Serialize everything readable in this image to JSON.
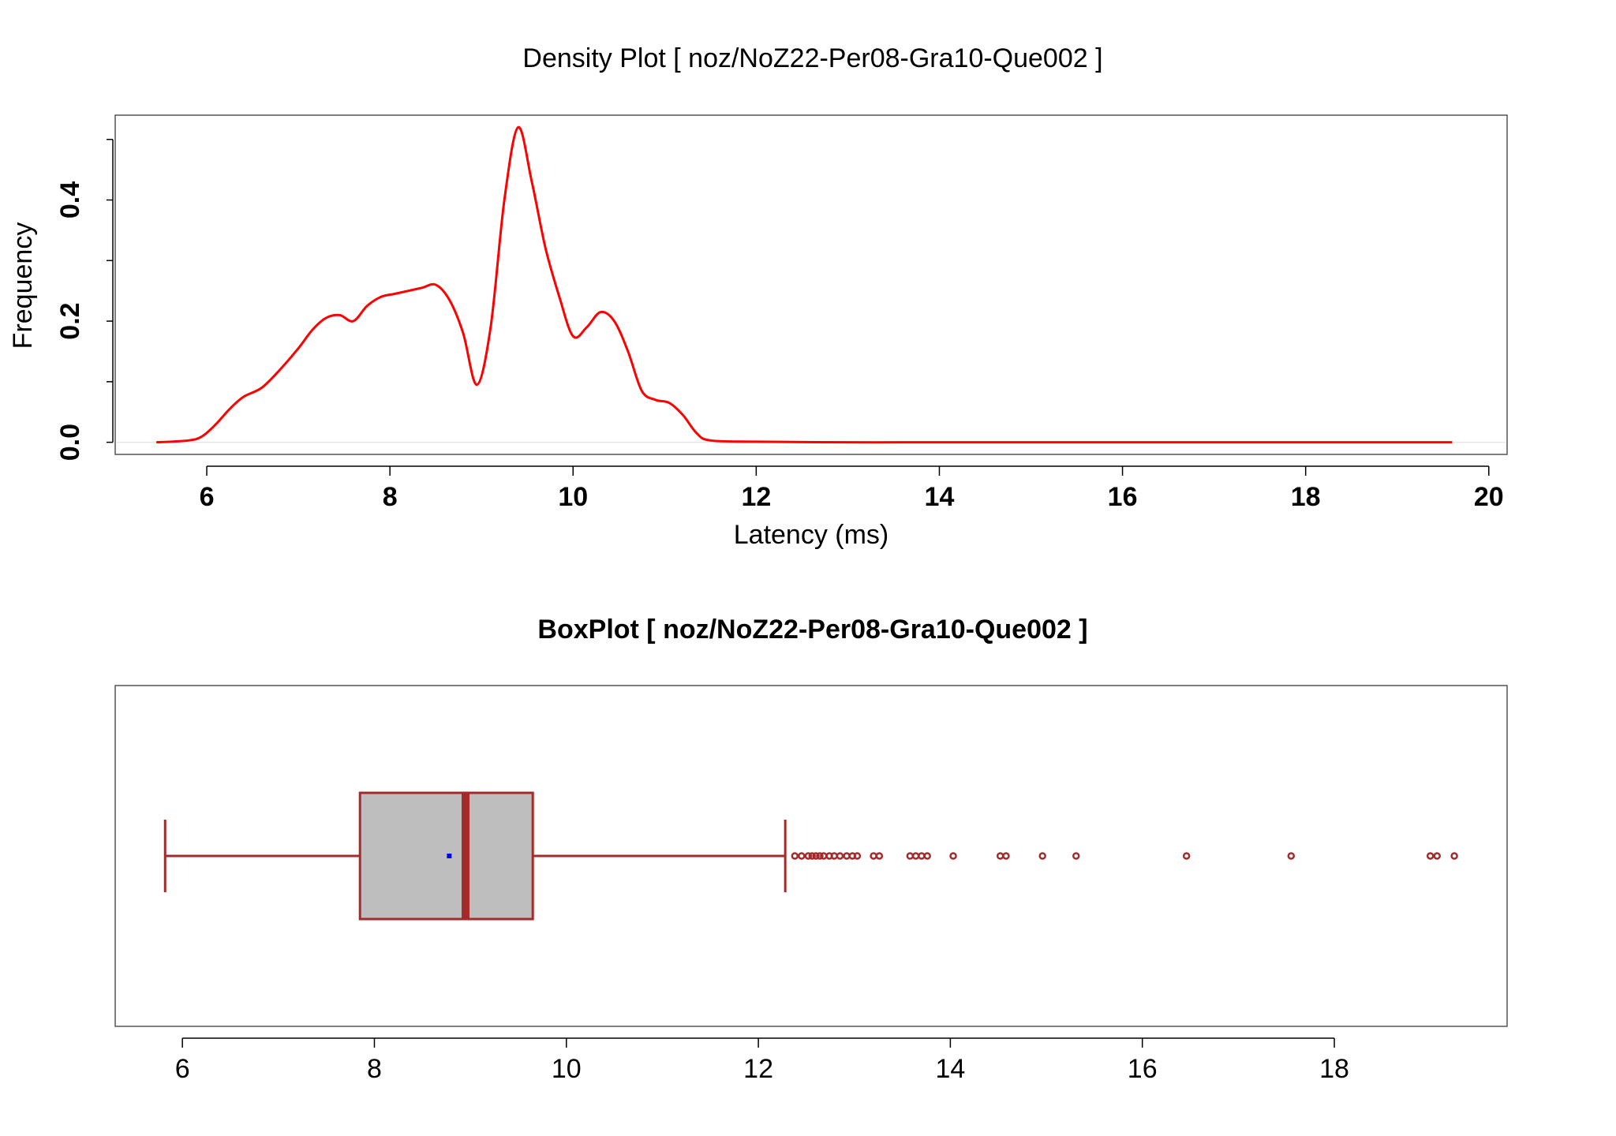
{
  "chart_data": [
    {
      "type": "line",
      "title": "Density Plot [ noz/NoZ22-Per08-Gra10-Que002 ]",
      "xlabel": "Latency (ms)",
      "ylabel": "Frequency",
      "xlim": [
        5.0,
        20.2
      ],
      "ylim": [
        -0.02,
        0.54
      ],
      "x_ticks": [
        6,
        8,
        10,
        12,
        14,
        16,
        18,
        20
      ],
      "x_tick_labels": [
        "6",
        "8",
        "10",
        "12",
        "14",
        "16",
        "18",
        "20"
      ],
      "y_ticks": [
        0.0,
        0.1,
        0.2,
        0.3,
        0.4,
        0.5
      ],
      "y_tick_labels": [
        "0.0",
        "",
        "0.2",
        "",
        "0.4",
        ""
      ],
      "grid": false,
      "series": [
        {
          "color": "#ff0000",
          "x": [
            5.45,
            5.8,
            5.95,
            6.1,
            6.25,
            6.4,
            6.6,
            6.8,
            7.0,
            7.15,
            7.3,
            7.45,
            7.6,
            7.75,
            7.9,
            8.05,
            8.2,
            8.35,
            8.5,
            8.65,
            8.8,
            8.95,
            9.1,
            9.25,
            9.4,
            9.55,
            9.7,
            9.85,
            10.0,
            10.15,
            10.3,
            10.45,
            10.6,
            10.75,
            10.9,
            11.05,
            11.2,
            11.35,
            11.5,
            12.0,
            13.0,
            14.0,
            16.0,
            18.0,
            19.6
          ],
          "y": [
            0.0,
            0.003,
            0.01,
            0.03,
            0.055,
            0.075,
            0.09,
            0.12,
            0.155,
            0.185,
            0.205,
            0.21,
            0.2,
            0.225,
            0.24,
            0.245,
            0.25,
            0.255,
            0.26,
            0.235,
            0.18,
            0.095,
            0.19,
            0.4,
            0.52,
            0.43,
            0.32,
            0.24,
            0.175,
            0.19,
            0.215,
            0.2,
            0.15,
            0.085,
            0.07,
            0.065,
            0.045,
            0.015,
            0.003,
            0.001,
            0.0,
            0.0,
            0.0,
            0.0,
            0.0
          ]
        }
      ]
    },
    {
      "type": "box",
      "title": "BoxPlot [ noz/NoZ22-Per08-Gra10-Que002 ]",
      "xlabel": "",
      "ylabel": "",
      "xlim": [
        5.3,
        19.8
      ],
      "x_ticks": [
        6,
        8,
        10,
        12,
        14,
        16,
        18
      ],
      "x_tick_labels": [
        "6",
        "8",
        "10",
        "12",
        "14",
        "16",
        "18"
      ],
      "box": {
        "whisker_low": 5.82,
        "q1": 7.85,
        "median": 8.95,
        "q3": 9.65,
        "whisker_high": 12.28,
        "mean": 8.78,
        "outliers": [
          12.38,
          12.45,
          12.52,
          12.56,
          12.6,
          12.64,
          12.68,
          12.74,
          12.79,
          12.85,
          12.92,
          12.98,
          13.03,
          13.2,
          13.26,
          13.58,
          13.64,
          13.7,
          13.76,
          14.03,
          14.52,
          14.58,
          14.96,
          15.31,
          16.46,
          17.55,
          19.0,
          19.07,
          19.25
        ]
      },
      "box_fill": "#bebebe",
      "box_border": "#a52a2a",
      "mean_color": "#0000ff",
      "grid": false
    }
  ]
}
